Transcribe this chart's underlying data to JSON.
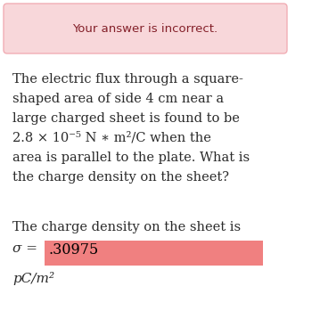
{
  "banner_text": "Your answer is incorrect.",
  "banner_bg": "#f8d7da",
  "banner_border": "#f1aeb5",
  "banner_text_color": "#842029",
  "body_bg": "#ffffff",
  "question_text_lines": [
    "The electric flux through a square-",
    "shaped area of side 4 cm near a",
    "large charged sheet is found to be",
    "2.8 × 10⁻⁵ N ∗ m²/C when the",
    "area is parallel to the plate. What is",
    "the charge density on the sheet?"
  ],
  "answer_intro": "The charge density on the sheet is",
  "sigma_label": "σ =",
  "answer_value": ".30975",
  "answer_unit": "pC/m²",
  "answer_bg": "#f08080",
  "answer_text_color": "#000000",
  "body_text_color": "#2a2a2a",
  "question_fontsize": 10.5,
  "banner_fontsize": 9.5,
  "sigma_fontsize": 11.0,
  "answer_fontsize": 11.5,
  "unit_fontsize": 11.0
}
